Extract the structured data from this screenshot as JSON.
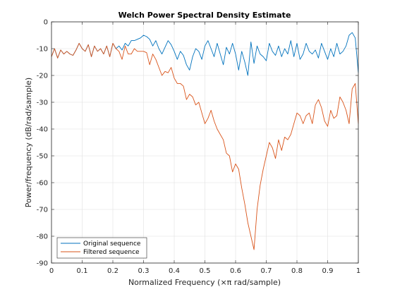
{
  "chart_data": {
    "type": "line",
    "title": "Welch Power Spectral Density Estimate",
    "xlabel": "Normalized Frequency (×π rad/sample)",
    "ylabel": "Power/frequency (dB/rad/sample)",
    "xlim": [
      0,
      1
    ],
    "ylim": [
      -90,
      0
    ],
    "xticks": [
      0,
      0.1,
      0.2,
      0.3,
      0.4,
      0.5,
      0.6,
      0.7,
      0.8,
      0.9,
      1
    ],
    "xtick_labels": [
      "0",
      "0.1",
      "0.2",
      "0.3",
      "0.4",
      "0.5",
      "0.6",
      "0.7",
      "0.8",
      "0.9",
      "1"
    ],
    "yticks": [
      0,
      -10,
      -20,
      -30,
      -40,
      -50,
      -60,
      -70,
      -80,
      -90
    ],
    "ytick_labels": [
      "0",
      "-10",
      "-20",
      "-30",
      "-40",
      "-50",
      "-60",
      "-70",
      "-80",
      "-90"
    ],
    "grid": true,
    "legend_position": "bottom-left",
    "series": [
      {
        "name": "Original sequence",
        "color": "#0072BD",
        "x": [
          0,
          0.01,
          0.02,
          0.03,
          0.04,
          0.05,
          0.06,
          0.07,
          0.08,
          0.09,
          0.1,
          0.11,
          0.12,
          0.13,
          0.14,
          0.15,
          0.16,
          0.17,
          0.18,
          0.19,
          0.2,
          0.21,
          0.22,
          0.23,
          0.24,
          0.25,
          0.26,
          0.27,
          0.28,
          0.29,
          0.3,
          0.31,
          0.32,
          0.33,
          0.34,
          0.35,
          0.36,
          0.37,
          0.38,
          0.39,
          0.4,
          0.41,
          0.42,
          0.43,
          0.44,
          0.45,
          0.46,
          0.47,
          0.48,
          0.49,
          0.5,
          0.51,
          0.52,
          0.53,
          0.54,
          0.55,
          0.56,
          0.57,
          0.58,
          0.59,
          0.6,
          0.61,
          0.62,
          0.63,
          0.64,
          0.65,
          0.66,
          0.67,
          0.68,
          0.69,
          0.7,
          0.71,
          0.72,
          0.73,
          0.74,
          0.75,
          0.76,
          0.77,
          0.78,
          0.79,
          0.8,
          0.81,
          0.82,
          0.83,
          0.84,
          0.85,
          0.86,
          0.87,
          0.88,
          0.89,
          0.9,
          0.91,
          0.92,
          0.93,
          0.94,
          0.95,
          0.96,
          0.97,
          0.98,
          0.99,
          1
        ],
        "y": [
          -13,
          -10,
          -13.5,
          -10.5,
          -12,
          -11,
          -12,
          -12.5,
          -10.5,
          -8,
          -10,
          -11,
          -8.5,
          -13,
          -9,
          -11,
          -10,
          -12,
          -9,
          -13,
          -8,
          -10,
          -9,
          -10.5,
          -8,
          -9,
          -7,
          -7,
          -6.5,
          -6,
          -5,
          -5.5,
          -6.5,
          -9,
          -7,
          -10,
          -12,
          -9.5,
          -7,
          -8.5,
          -11,
          -14,
          -11,
          -12.5,
          -16,
          -18,
          -13,
          -10,
          -11,
          -14,
          -9,
          -7,
          -10,
          -13,
          -8,
          -12,
          -16,
          -9.5,
          -12,
          -8,
          -12,
          -18,
          -11,
          -15,
          -20,
          -7.5,
          -15.5,
          -9,
          -12,
          -13,
          -14.5,
          -8,
          -11,
          -12.5,
          -9,
          -13,
          -10,
          -12,
          -7,
          -13,
          -8,
          -14,
          -12,
          -8,
          -11,
          -12,
          -10.5,
          -13.5,
          -8,
          -11,
          -14,
          -10,
          -13,
          -8,
          -12,
          -11,
          -9,
          -5,
          -4,
          -6,
          -19
        ]
      },
      {
        "name": "Filtered sequence",
        "color": "#D95319",
        "x": [
          0,
          0.01,
          0.02,
          0.03,
          0.04,
          0.05,
          0.06,
          0.07,
          0.08,
          0.09,
          0.1,
          0.11,
          0.12,
          0.13,
          0.14,
          0.15,
          0.16,
          0.17,
          0.18,
          0.19,
          0.2,
          0.21,
          0.22,
          0.23,
          0.24,
          0.25,
          0.26,
          0.27,
          0.28,
          0.29,
          0.3,
          0.31,
          0.32,
          0.33,
          0.34,
          0.35,
          0.36,
          0.37,
          0.38,
          0.39,
          0.4,
          0.41,
          0.42,
          0.43,
          0.44,
          0.45,
          0.46,
          0.47,
          0.48,
          0.49,
          0.5,
          0.51,
          0.52,
          0.53,
          0.54,
          0.55,
          0.56,
          0.57,
          0.58,
          0.59,
          0.6,
          0.61,
          0.62,
          0.63,
          0.64,
          0.65,
          0.66,
          0.67,
          0.68,
          0.69,
          0.7,
          0.71,
          0.72,
          0.73,
          0.74,
          0.75,
          0.76,
          0.77,
          0.78,
          0.79,
          0.8,
          0.81,
          0.82,
          0.83,
          0.84,
          0.85,
          0.86,
          0.87,
          0.88,
          0.89,
          0.9,
          0.91,
          0.92,
          0.93,
          0.94,
          0.95,
          0.96,
          0.97,
          0.98,
          0.99,
          1
        ],
        "y": [
          -13,
          -10,
          -13.5,
          -10.5,
          -12,
          -11,
          -12,
          -12.5,
          -10.5,
          -8,
          -10,
          -11,
          -8.5,
          -13,
          -9,
          -11,
          -10,
          -12,
          -9,
          -13,
          -8,
          -10,
          -11,
          -14,
          -9,
          -12,
          -12,
          -10,
          -11,
          -11,
          -11,
          -11.5,
          -16,
          -12,
          -14,
          -17,
          -20,
          -18.5,
          -19,
          -17,
          -21,
          -23,
          -23,
          -24,
          -29,
          -27,
          -28,
          -31,
          -30,
          -34,
          -38,
          -36,
          -33,
          -37,
          -40,
          -42,
          -44,
          -49,
          -50,
          -56,
          -53,
          -55,
          -62,
          -68,
          -75,
          -80,
          -85,
          -70,
          -61,
          -55,
          -50,
          -45,
          -47,
          -51,
          -44,
          -48,
          -43,
          -44,
          -42,
          -38,
          -34,
          -35,
          -38,
          -35,
          -34,
          -38,
          -31,
          -29,
          -32,
          -37,
          -39,
          -33,
          -36,
          -35,
          -28,
          -30,
          -33,
          -38,
          -25,
          -23,
          -38
        ]
      }
    ]
  }
}
